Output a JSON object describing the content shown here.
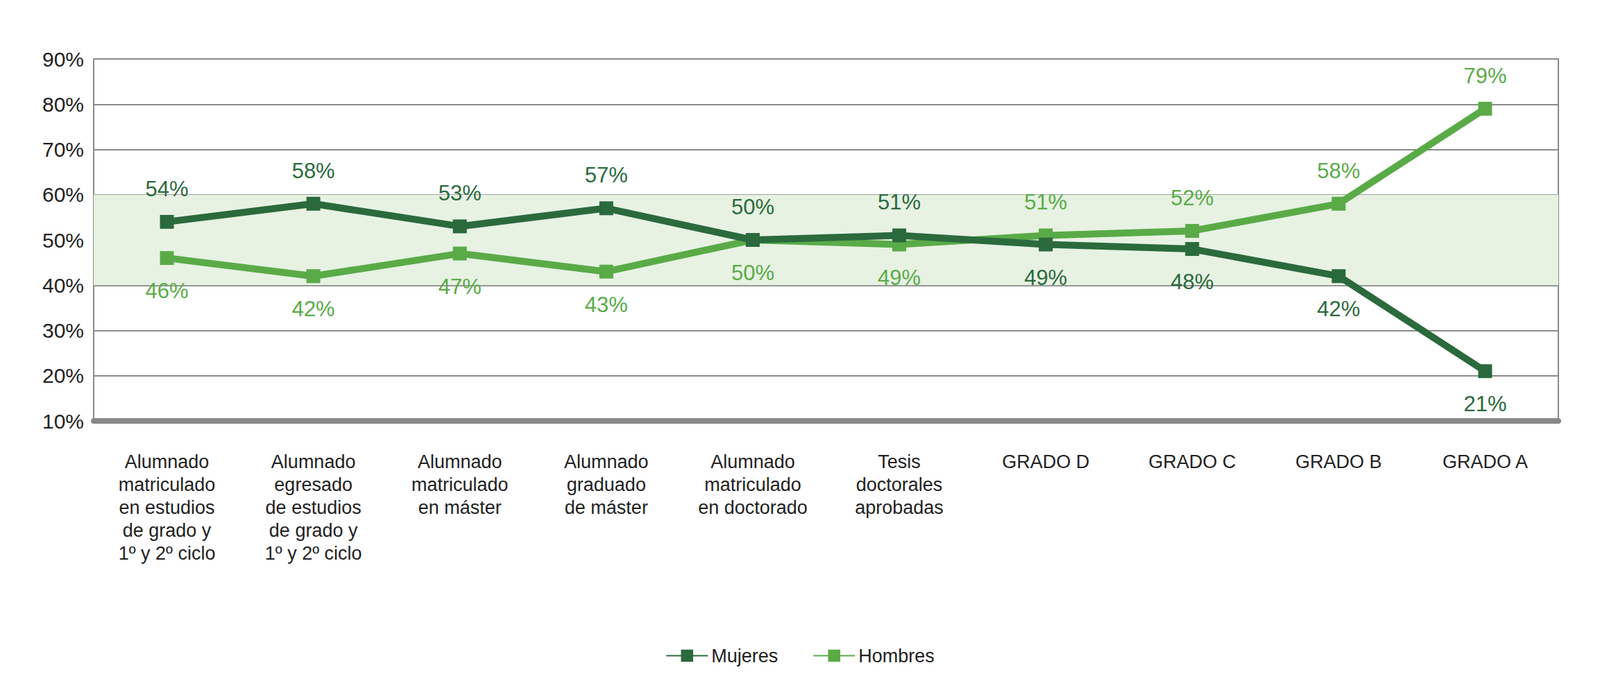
{
  "chart_data": {
    "type": "line",
    "categories": [
      "Alumnado\nmatriculado\nen estudios\nde grado y\n1º y 2º ciclo",
      "Alumnado\negresado\nde estudios\nde grado y\n1º y 2º ciclo",
      "Alumnado\nmatriculado\nen máster",
      "Alumnado\ngraduado\nde máster",
      "Alumnado\nmatriculado\nen doctorado",
      "Tesis\ndoctorales\naprobadas",
      "GRADO D",
      "GRADO C",
      "GRADO B",
      "GRADO A"
    ],
    "series": [
      {
        "name": "Mujeres",
        "color": "#2b6a3d",
        "marker": "square",
        "values": [
          54,
          58,
          53,
          57,
          50,
          51,
          49,
          48,
          42,
          21
        ],
        "value_labels": [
          "54%",
          "58%",
          "53%",
          "57%",
          "50%",
          "51%",
          "49%",
          "48%",
          "42%",
          "21%"
        ]
      },
      {
        "name": "Hombres",
        "color": "#5aab48",
        "marker": "square",
        "values": [
          46,
          42,
          47,
          43,
          50,
          49,
          51,
          52,
          58,
          79
        ],
        "value_labels": [
          "46%",
          "42%",
          "47%",
          "43%",
          "50%",
          "49%",
          "51%",
          "52%",
          "58%",
          "79%"
        ]
      }
    ],
    "ylim": [
      10,
      90
    ],
    "yticks": [
      {
        "value": 10,
        "label": "10%"
      },
      {
        "value": 20,
        "label": "20%"
      },
      {
        "value": 30,
        "label": "30%"
      },
      {
        "value": 40,
        "label": "40%"
      },
      {
        "value": 50,
        "label": "50%"
      },
      {
        "value": 60,
        "label": "60%"
      },
      {
        "value": 70,
        "label": "70%"
      },
      {
        "value": 80,
        "label": "80%"
      },
      {
        "value": 90,
        "label": "90%"
      }
    ],
    "shaded_band": [
      40,
      60
    ],
    "grid": true,
    "legend": "bottom",
    "data_labels": true
  }
}
